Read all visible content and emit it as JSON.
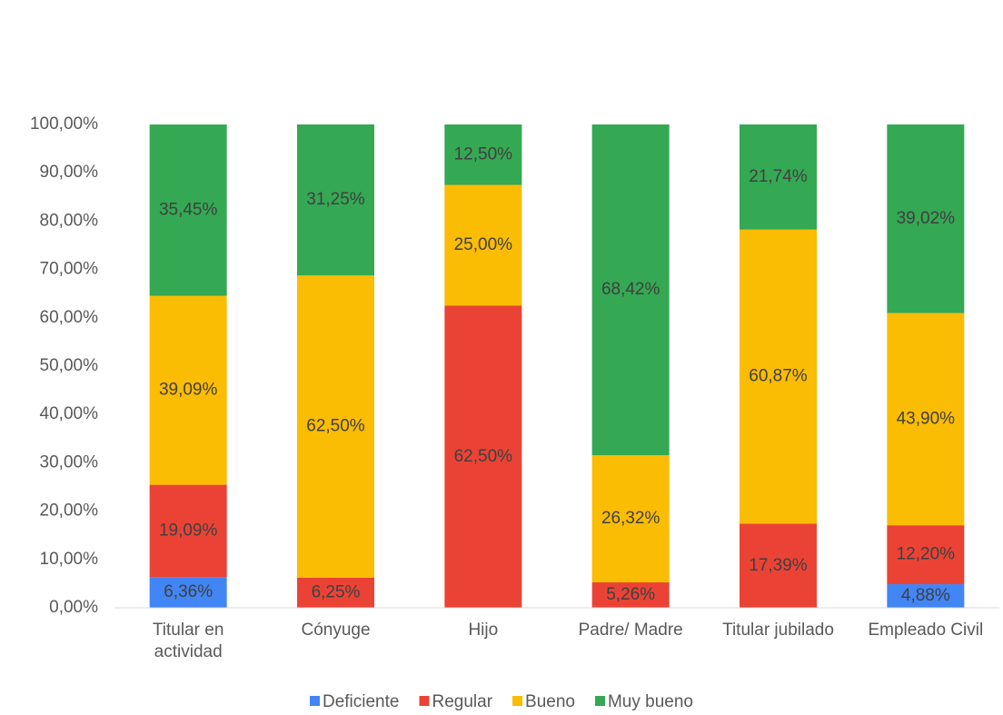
{
  "chart_data": {
    "type": "stacked_bar",
    "categories": [
      "Titular en actividad",
      "Cónyuge",
      "Hijo",
      "Padre/ Madre",
      "Titular jubilado",
      "Empleado Civil"
    ],
    "series": [
      {
        "name": "Deficiente",
        "color": "#4285f4",
        "values": [
          6.36,
          null,
          null,
          null,
          null,
          4.88
        ],
        "value_labels": [
          "6,36%",
          null,
          null,
          null,
          null,
          "4,88%"
        ]
      },
      {
        "name": "Regular",
        "color": "#ea4335",
        "values": [
          19.09,
          6.25,
          62.5,
          5.26,
          17.39,
          12.2
        ],
        "value_labels": [
          "19,09%",
          "6,25%",
          "62,50%",
          "5,26%",
          "17,39%",
          "12,20%"
        ]
      },
      {
        "name": "Bueno",
        "color": "#fbbc04",
        "values": [
          39.09,
          62.5,
          25,
          26.32,
          60.87,
          43.9
        ],
        "value_labels": [
          "39,09%",
          "62,50%",
          "25,00%",
          "26,32%",
          "60,87%",
          "43,90%"
        ]
      },
      {
        "name": "Muy bueno",
        "color": "#34a853",
        "values": [
          35.45,
          31.25,
          12.5,
          68.42,
          21.74,
          39.02
        ],
        "value_labels": [
          "35,45%",
          "31,25%",
          "12,50%",
          "68,42%",
          "21,74%",
          "39,02%"
        ]
      }
    ],
    "ylim": [
      0,
      100
    ],
    "yticks": [
      {
        "value": 0,
        "label": "0,00%"
      },
      {
        "value": 10,
        "label": "10,00%"
      },
      {
        "value": 20,
        "label": "20,00%"
      },
      {
        "value": 30,
        "label": "30,00%"
      },
      {
        "value": 40,
        "label": "40,00%"
      },
      {
        "value": 50,
        "label": "50,00%"
      },
      {
        "value": 60,
        "label": "60,00%"
      },
      {
        "value": 70,
        "label": "70,00%"
      },
      {
        "value": 80,
        "label": "80,00%"
      },
      {
        "value": 90,
        "label": "90,00%"
      },
      {
        "value": 100,
        "label": "100,00%"
      }
    ],
    "grid": false,
    "legend": "bottom"
  }
}
